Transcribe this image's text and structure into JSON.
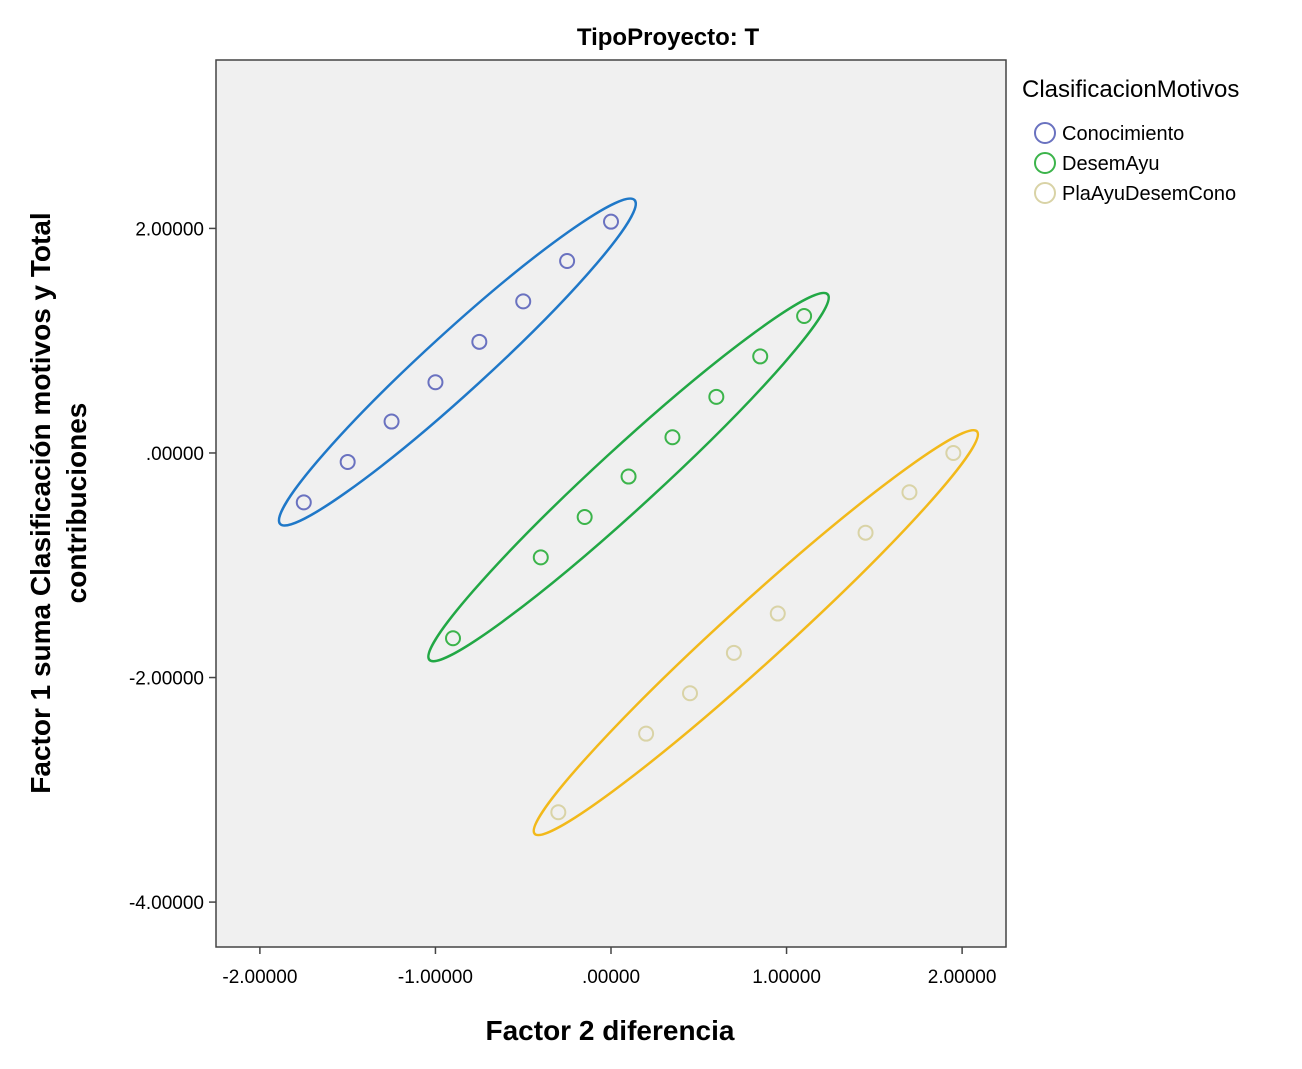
{
  "chart_data": {
    "type": "scatter",
    "title": "TipoProyecto: T",
    "xlabel": "Factor 2 diferencia",
    "ylabel_lines": [
      "Factor 1 suma Clasificación motivos y Total",
      "contribuciones"
    ],
    "xlim": [
      -2.25,
      2.25
    ],
    "ylim": [
      -4.4,
      3.5
    ],
    "xticks": [
      -2,
      -1,
      0,
      1,
      2
    ],
    "xtick_labels": [
      "-2.00000",
      "-1.00000",
      ".00000",
      "1.00000",
      "2.00000"
    ],
    "yticks": [
      -4,
      -2,
      0,
      2
    ],
    "ytick_labels": [
      "-4.00000",
      "-2.00000",
      ".00000",
      "2.00000"
    ],
    "legend_title": "ClasificacionMotivos",
    "legend_position": "right",
    "background": "#f0f0f0",
    "series": [
      {
        "name": "Conocimiento",
        "marker_color": "#6a72c0",
        "ellipse_color": "#1f78c8",
        "x": [
          -1.75,
          -1.5,
          -1.25,
          -1.0,
          -0.75,
          -0.5,
          -0.25,
          0.0
        ],
        "y": [
          -0.44,
          -0.08,
          0.28,
          0.63,
          0.99,
          1.35,
          1.71,
          2.06
        ]
      },
      {
        "name": "DesemAyu",
        "marker_color": "#3cb44b",
        "ellipse_color": "#22a845",
        "x": [
          -0.9,
          -0.4,
          -0.15,
          0.1,
          0.35,
          0.6,
          0.85,
          1.1
        ],
        "y": [
          -1.65,
          -0.93,
          -0.57,
          -0.21,
          0.14,
          0.5,
          0.86,
          1.22
        ]
      },
      {
        "name": "PlaAyuDesemCono",
        "marker_color": "#d9d3a6",
        "ellipse_color": "#f2b91a",
        "x": [
          -0.3,
          0.2,
          0.45,
          0.7,
          0.95,
          1.45,
          1.7,
          1.95
        ],
        "y": [
          -3.2,
          -2.5,
          -2.14,
          -1.78,
          -1.43,
          -0.71,
          -0.35,
          0.0
        ]
      }
    ]
  }
}
